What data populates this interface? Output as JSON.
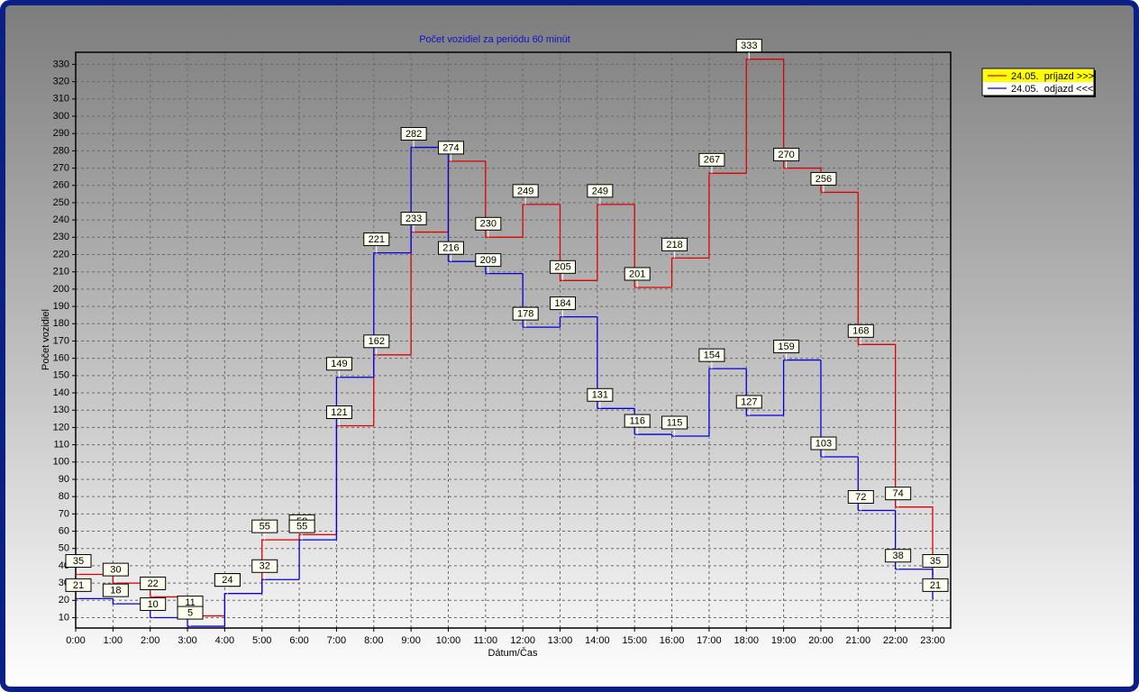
{
  "chart_data": {
    "type": "step-line",
    "title": "Počet vozidiel za periódu 60 minút",
    "x_label": "Dátum/Čas",
    "y_label": "Počet vozidiel",
    "categories": [
      "0:00",
      "1:00",
      "2:00",
      "3:00",
      "4:00",
      "5:00",
      "6:00",
      "7:00",
      "8:00",
      "9:00",
      "10:00",
      "11:00",
      "12:00",
      "13:00",
      "14:00",
      "15:00",
      "16:00",
      "17:00",
      "18:00",
      "19:00",
      "20:00",
      "21:00",
      "22:00",
      "23:00"
    ],
    "series": [
      {
        "name": "24.05.  príjazd >>>",
        "color": "#e00000",
        "values": [
          35,
          30,
          22,
          11,
          24,
          55,
          58,
          121,
          162,
          233,
          274,
          230,
          249,
          205,
          249,
          201,
          218,
          267,
          333,
          270,
          256,
          168,
          74,
          35
        ]
      },
      {
        "name": "24.05.  odjazd <<<",
        "color": "#0000e0",
        "values": [
          21,
          18,
          10,
          5,
          24,
          32,
          55,
          149,
          221,
          282,
          216,
          209,
          178,
          184,
          131,
          116,
          115,
          154,
          127,
          159,
          103,
          72,
          38,
          21
        ]
      }
    ],
    "ylim": [
      4,
      337
    ],
    "yticks": [
      10,
      20,
      30,
      40,
      50,
      60,
      70,
      80,
      90,
      100,
      110,
      120,
      130,
      140,
      150,
      160,
      170,
      180,
      190,
      200,
      210,
      220,
      230,
      240,
      250,
      260,
      270,
      280,
      290,
      300,
      310,
      320,
      330
    ],
    "grid": true,
    "legend": "right"
  }
}
